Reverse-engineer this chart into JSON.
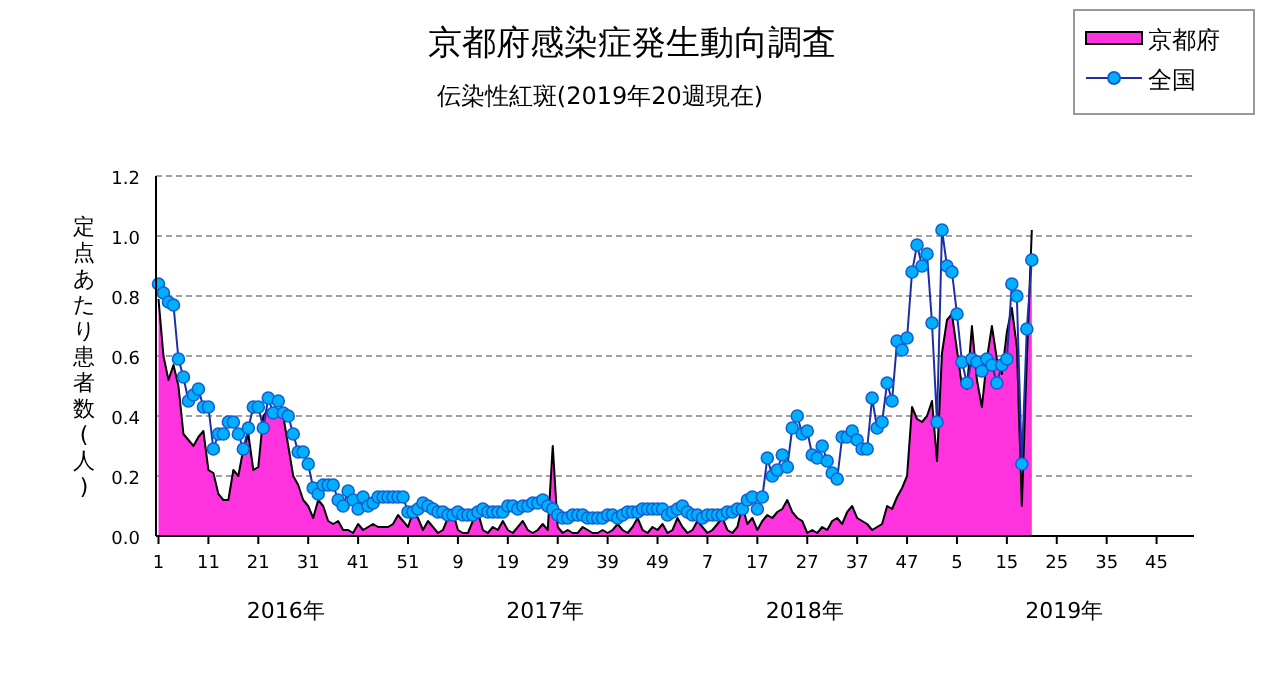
{
  "chart_data": {
    "type": "line",
    "title": "京都府感染症発生動向調査",
    "subtitle": "伝染性紅斑(2019年20週現在)",
    "ylabel": "定点あたり患者数(人)",
    "annotations": [
      "2016年",
      "2017年",
      "2018年",
      "2019年"
    ],
    "categories": [
      "1",
      null,
      null,
      null,
      null,
      null,
      null,
      null,
      null,
      null,
      "11",
      null,
      null,
      null,
      null,
      null,
      null,
      null,
      null,
      null,
      "21",
      null,
      null,
      null,
      null,
      null,
      null,
      null,
      null,
      null,
      "31",
      null,
      null,
      null,
      null,
      null,
      null,
      null,
      null,
      null,
      "41",
      null,
      null,
      null,
      null,
      null,
      null,
      null,
      null,
      null,
      "51",
      null,
      null,
      null,
      null,
      null,
      null,
      null,
      null,
      null,
      "9",
      null,
      null,
      null,
      null,
      null,
      null,
      null,
      null,
      null,
      "19",
      null,
      null,
      null,
      null,
      null,
      null,
      null,
      null,
      null,
      "29",
      null,
      null,
      null,
      null,
      null,
      null,
      null,
      null,
      null,
      "39",
      null,
      null,
      null,
      null,
      null,
      null,
      null,
      null,
      null,
      "49",
      null,
      null,
      null,
      null,
      null,
      null,
      null,
      null,
      null,
      "7",
      null,
      null,
      null,
      null,
      null,
      null,
      null,
      null,
      null,
      "17",
      null,
      null,
      null,
      null,
      null,
      null,
      null,
      null,
      null,
      "27",
      null,
      null,
      null,
      null,
      null,
      null,
      null,
      null,
      null,
      "37",
      null,
      null,
      null,
      null,
      null,
      null,
      null,
      null,
      null,
      "47",
      null,
      null,
      null,
      null,
      null,
      null,
      null,
      null,
      null,
      "5",
      null,
      null,
      null,
      null,
      null,
      null,
      null,
      null,
      null,
      "15",
      null,
      null,
      null,
      null,
      null,
      null,
      null,
      null,
      null,
      "25",
      null,
      null,
      null,
      null,
      null,
      null,
      null,
      null,
      null,
      "35",
      null,
      null,
      null,
      null,
      null,
      null,
      null,
      null,
      null,
      "45",
      null,
      null,
      null,
      null,
      null,
      null,
      null
    ],
    "ylim": [
      0,
      1.2
    ],
    "yticks": [
      {
        "value": 0,
        "label": "0.0"
      },
      {
        "value": 0.2,
        "label": "0.2"
      },
      {
        "value": 0.4,
        "label": "0.4"
      },
      {
        "value": 0.6,
        "label": "0.6"
      },
      {
        "value": 0.8,
        "label": "0.8"
      },
      {
        "value": 1.0,
        "label": "1.0"
      },
      {
        "value": 1.2,
        "label": "1.2"
      }
    ],
    "grid": "y",
    "legend": "top right",
    "series": [
      {
        "name": "京都府",
        "type": "area",
        "color": "#ff33dd",
        "values": [
          0.79,
          0.6,
          0.52,
          0.57,
          0.5,
          0.34,
          0.32,
          0.3,
          0.33,
          0.35,
          0.22,
          0.21,
          0.14,
          0.12,
          0.12,
          0.22,
          0.2,
          0.29,
          0.34,
          0.22,
          0.23,
          0.4,
          0.42,
          0.41,
          0.41,
          0.4,
          0.3,
          0.2,
          0.17,
          0.12,
          0.1,
          0.06,
          0.12,
          0.1,
          0.05,
          0.04,
          0.05,
          0.02,
          0.02,
          0.01,
          0.04,
          0.02,
          0.03,
          0.04,
          0.03,
          0.03,
          0.03,
          0.04,
          0.07,
          0.05,
          0.03,
          0.08,
          0.06,
          0.02,
          0.05,
          0.03,
          0.01,
          0.02,
          0.06,
          0.08,
          0.02,
          0.01,
          0.01,
          0.05,
          0.08,
          0.02,
          0.01,
          0.03,
          0.02,
          0.05,
          0.02,
          0.01,
          0.03,
          0.05,
          0.02,
          0.01,
          0.02,
          0.04,
          0.02,
          0.3,
          0.03,
          0.01,
          0.02,
          0.01,
          0.01,
          0.03,
          0.02,
          0.01,
          0.01,
          0.02,
          0.01,
          0.02,
          0.04,
          0.02,
          0.01,
          0.03,
          0.06,
          0.02,
          0.01,
          0.03,
          0.02,
          0.04,
          0.01,
          0.02,
          0.06,
          0.03,
          0.01,
          0.02,
          0.05,
          0.03,
          0.01,
          0.02,
          0.04,
          0.06,
          0.02,
          0.01,
          0.03,
          0.1,
          0.04,
          0.06,
          0.02,
          0.05,
          0.07,
          0.06,
          0.08,
          0.09,
          0.12,
          0.08,
          0.06,
          0.05,
          0.01,
          0.02,
          0.01,
          0.03,
          0.02,
          0.05,
          0.06,
          0.04,
          0.08,
          0.1,
          0.06,
          0.05,
          0.04,
          0.02,
          0.03,
          0.04,
          0.1,
          0.09,
          0.13,
          0.16,
          0.2,
          0.43,
          0.39,
          0.38,
          0.4,
          0.45,
          0.25,
          0.61,
          0.72,
          0.74,
          0.62,
          0.5,
          0.49,
          0.7,
          0.52,
          0.43,
          0.59,
          0.7,
          0.59,
          0.54,
          0.68,
          0.76,
          0.63,
          0.1,
          0.59,
          1.02,
          null,
          null,
          null,
          null,
          null,
          null,
          null,
          null,
          null,
          null,
          null,
          null,
          null,
          null,
          null,
          null,
          null,
          null,
          null,
          null,
          null,
          null,
          null,
          null,
          null,
          null,
          null,
          null,
          null,
          null,
          null,
          null
        ]
      },
      {
        "name": "全国",
        "type": "line",
        "marker": "circle",
        "color": "#00b0ff",
        "values": [
          0.84,
          0.81,
          0.78,
          0.77,
          0.59,
          0.53,
          0.45,
          0.47,
          0.49,
          0.43,
          0.43,
          0.29,
          0.34,
          0.34,
          0.38,
          0.38,
          0.34,
          0.29,
          0.36,
          0.43,
          0.43,
          0.36,
          0.46,
          0.41,
          0.45,
          0.41,
          0.4,
          0.34,
          0.28,
          0.28,
          0.24,
          0.16,
          0.14,
          0.17,
          0.17,
          0.17,
          0.12,
          0.1,
          0.15,
          0.12,
          0.09,
          0.13,
          0.1,
          0.11,
          0.13,
          0.13,
          0.13,
          0.13,
          0.13,
          0.13,
          0.08,
          0.08,
          0.09,
          0.11,
          0.1,
          0.09,
          0.08,
          0.08,
          0.07,
          0.07,
          0.08,
          0.07,
          0.07,
          0.07,
          0.08,
          0.09,
          0.08,
          0.08,
          0.08,
          0.08,
          0.1,
          0.1,
          0.09,
          0.1,
          0.1,
          0.11,
          0.11,
          0.12,
          0.1,
          0.09,
          0.07,
          0.06,
          0.06,
          0.07,
          0.07,
          0.07,
          0.06,
          0.06,
          0.06,
          0.06,
          0.07,
          0.07,
          0.06,
          0.07,
          0.08,
          0.08,
          0.08,
          0.09,
          0.09,
          0.09,
          0.09,
          0.09,
          0.07,
          0.08,
          0.09,
          0.1,
          0.08,
          0.07,
          0.07,
          0.06,
          0.07,
          0.07,
          0.07,
          0.07,
          0.08,
          0.08,
          0.09,
          0.09,
          0.12,
          0.13,
          0.09,
          0.13,
          0.26,
          0.2,
          0.22,
          0.27,
          0.23,
          0.36,
          0.4,
          0.34,
          0.35,
          0.27,
          0.26,
          0.3,
          0.25,
          0.21,
          0.19,
          0.33,
          0.33,
          0.35,
          0.32,
          0.29,
          0.29,
          0.46,
          0.36,
          0.38,
          0.51,
          0.45,
          0.65,
          0.62,
          0.66,
          0.88,
          0.97,
          0.9,
          0.94,
          0.71,
          0.38,
          1.02,
          0.9,
          0.88,
          0.74,
          0.58,
          0.51,
          0.59,
          0.58,
          0.55,
          0.59,
          0.57,
          0.51,
          0.57,
          0.59,
          0.84,
          0.8,
          0.24,
          0.69,
          0.92,
          null,
          null,
          null,
          null,
          null,
          null,
          null,
          null,
          null,
          null,
          null,
          null,
          null,
          null,
          null,
          null,
          null,
          null,
          null,
          null,
          null,
          null,
          null,
          null,
          null,
          null,
          null,
          null,
          null,
          null,
          null,
          null
        ]
      }
    ]
  }
}
